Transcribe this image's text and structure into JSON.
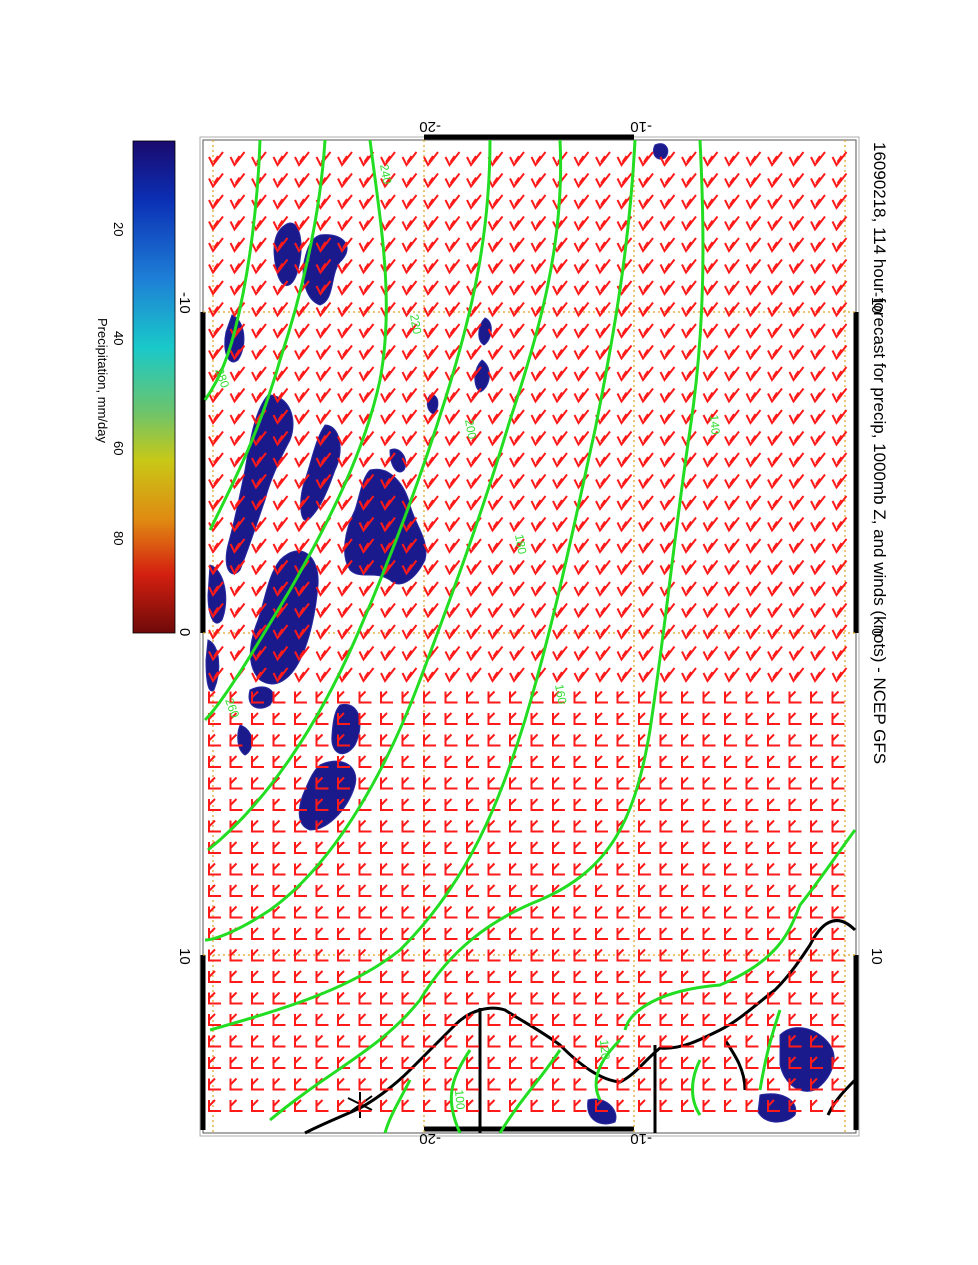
{
  "title": "16090218, 114 hour forecast for precip, 1000mb Z, and winds (knots) - NCEP GFS",
  "colorbar": {
    "label": "Precipitation, mm/day",
    "ticks": [
      "20",
      "40",
      "60",
      "80"
    ],
    "stops": [
      "#1a0a6e",
      "#0b2fb5",
      "#1e7fd6",
      "#19c9c9",
      "#6cc46c",
      "#c8c816",
      "#e08a12",
      "#d42010",
      "#6e0a0a"
    ]
  },
  "axes": {
    "lon_ticks_top": [
      "-20",
      "-10"
    ],
    "lon_ticks_bottom": [
      "-20",
      "-10"
    ],
    "lat_ticks_left": [
      "-10",
      "0",
      "10"
    ],
    "lat_ticks_right": [
      "-10",
      "0",
      "10"
    ]
  },
  "contours": {
    "color": "#22dd22",
    "labels": [
      "240",
      "220",
      "200",
      "180",
      "160",
      "140",
      "120",
      "100",
      "260",
      "280"
    ]
  },
  "colors": {
    "wind_barbs": "#ff1a1a",
    "coastline": "#000000",
    "precip_fill": "#1a1a8c",
    "grid": "#e0a020"
  }
}
